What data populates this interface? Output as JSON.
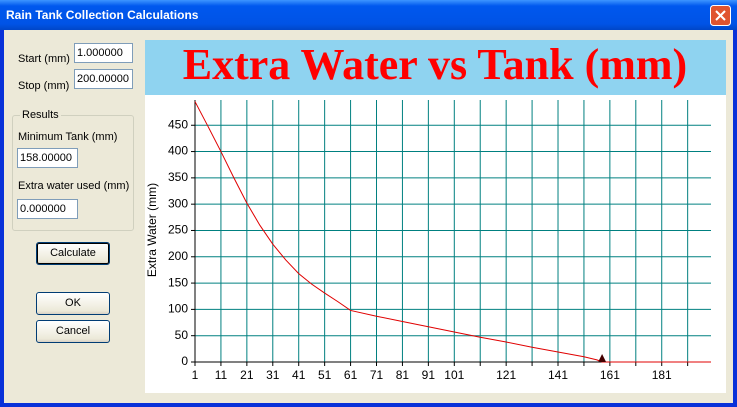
{
  "window": {
    "title": "Rain Tank Collection Calculations"
  },
  "form": {
    "start_label": "Start (mm)",
    "start_value": "1.000000",
    "stop_label": "Stop (mm)",
    "stop_value": "200.00000",
    "results_label": "Results",
    "min_tank_label": "Minimum Tank (mm)",
    "min_tank_value": "158.00000",
    "extra_label": "Extra water used (mm)",
    "extra_value": "0.000000",
    "calculate": "Calculate",
    "ok": "OK",
    "cancel": "Cancel"
  },
  "chart_data": {
    "type": "line",
    "title": "Extra Water vs Tank (mm)",
    "y_label": "Extra Water (mm)",
    "x": [
      1,
      6,
      11,
      16,
      21,
      26,
      31,
      36,
      41,
      46,
      51,
      56,
      61,
      71,
      81,
      91,
      101,
      111,
      121,
      131,
      141,
      151,
      156,
      158,
      161,
      171,
      181,
      191,
      200
    ],
    "values": [
      495,
      448,
      400,
      350,
      302,
      260,
      224,
      194,
      168,
      148,
      131,
      115,
      98,
      87,
      77,
      67,
      57,
      47,
      38,
      28,
      19,
      10,
      4,
      0,
      0,
      0,
      0,
      0,
      0
    ],
    "color": "#e00000",
    "grid_color": "#008080",
    "title_color": "#ff0000",
    "title_bg": "#8fd3f0",
    "xlim": [
      1,
      200
    ],
    "ylim": [
      0,
      498
    ],
    "xticks": [
      1,
      11,
      21,
      31,
      41,
      51,
      61,
      71,
      81,
      91,
      101,
      121,
      141,
      161,
      181
    ],
    "x_unlabeled_ticks": [
      111,
      131,
      151,
      171,
      191
    ],
    "yticks": [
      0,
      50,
      100,
      150,
      200,
      250,
      300,
      350,
      400,
      450
    ],
    "grid": true,
    "marker_x": 158
  }
}
